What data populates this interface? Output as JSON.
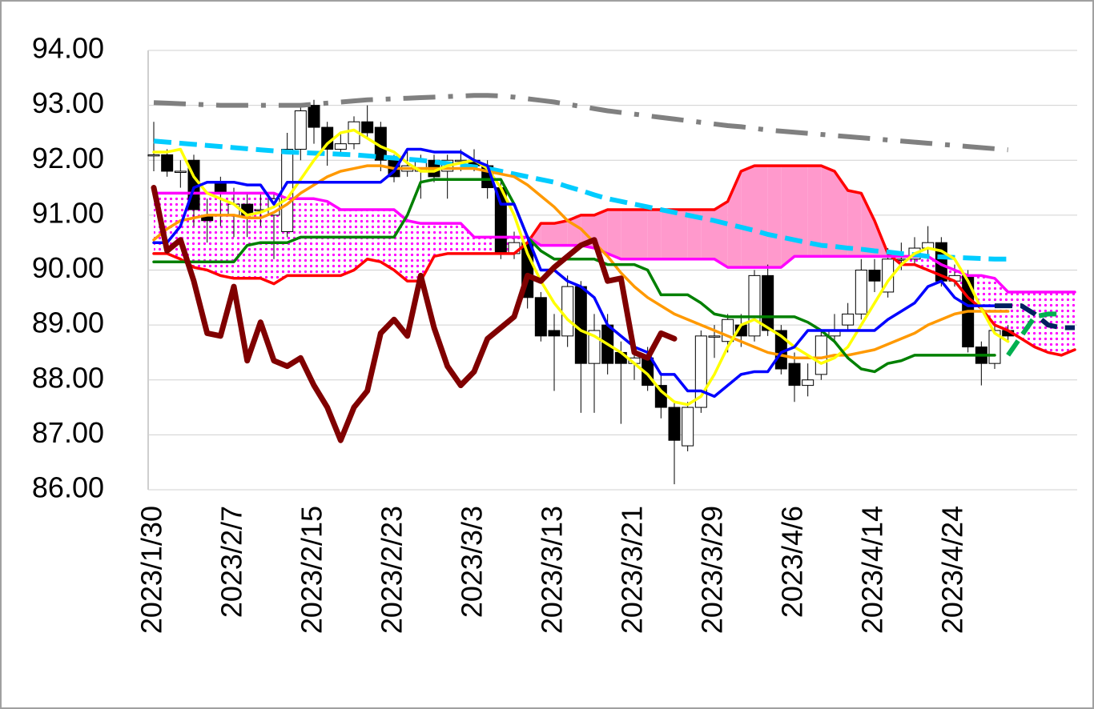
{
  "chart_data": {
    "type": "candlestick",
    "categories": [
      "2023/1/30",
      null,
      null,
      null,
      null,
      null,
      "2023/2/7",
      null,
      null,
      null,
      null,
      null,
      "2023/2/15",
      null,
      null,
      null,
      null,
      null,
      "2023/2/23",
      null,
      null,
      null,
      null,
      null,
      "2023/3/3",
      null,
      null,
      null,
      null,
      null,
      "2023/3/13",
      null,
      null,
      null,
      null,
      null,
      "2023/3/21",
      null,
      null,
      null,
      null,
      null,
      "2023/3/29",
      null,
      null,
      null,
      null,
      null,
      "2023/4/6",
      null,
      null,
      null,
      null,
      null,
      "2023/4/14",
      null,
      null,
      null,
      null,
      null,
      "2023/4/24",
      null,
      null,
      null,
      null,
      null,
      null,
      null,
      null,
      null
    ],
    "ylim": [
      86,
      94
    ],
    "yticks": [
      {
        "value": 86,
        "label": "86.00"
      },
      {
        "value": 87,
        "label": "87.00"
      },
      {
        "value": 88,
        "label": "88.00"
      },
      {
        "value": 89,
        "label": "89.00"
      },
      {
        "value": 90,
        "label": "90.00"
      },
      {
        "value": 91,
        "label": "91.00"
      },
      {
        "value": 92,
        "label": "92.00"
      },
      {
        "value": 93,
        "label": "93.00"
      },
      {
        "value": 94,
        "label": "94.00"
      }
    ],
    "grid": true,
    "candles": {
      "up_color": "#ffffff",
      "down_color": "#000000",
      "edge_color": "#000000",
      "open": [
        92.1,
        92.1,
        91.8,
        92.0,
        91.0,
        91.6,
        91.0,
        91.2,
        91.1,
        91.0,
        90.7,
        92.2,
        93.0,
        92.6,
        92.2,
        92.3,
        92.7,
        92.6,
        92.0,
        91.8,
        91.8,
        92.0,
        91.8,
        92.0,
        92.0,
        91.9,
        91.5,
        90.3,
        90.5,
        89.5,
        88.9,
        88.8,
        89.7,
        88.3,
        89.0,
        88.5,
        88.3,
        88.4,
        87.9,
        87.5,
        86.8,
        87.5,
        88.8,
        88.7,
        89.0,
        88.8,
        89.9,
        88.9,
        88.3,
        87.9,
        88.1,
        88.8,
        89.0,
        89.2,
        90.0,
        89.6,
        90.2,
        90.2,
        90.4,
        90.5,
        89.8,
        89.9,
        88.6,
        88.3,
        88.9,
        null,
        null,
        null,
        null,
        null
      ],
      "high": [
        92.7,
        92.2,
        92.0,
        92.1,
        91.3,
        91.7,
        91.5,
        91.4,
        91.4,
        91.4,
        92.5,
        93.0,
        93.1,
        92.7,
        92.5,
        92.8,
        93.0,
        92.7,
        92.1,
        92.2,
        92.1,
        92.1,
        92.1,
        92.2,
        92.2,
        92.0,
        91.6,
        90.7,
        90.6,
        89.6,
        89.2,
        89.9,
        89.8,
        89.2,
        89.2,
        88.7,
        88.7,
        88.6,
        88.1,
        87.6,
        87.6,
        88.9,
        89.0,
        89.2,
        89.2,
        90.0,
        90.1,
        89.0,
        88.5,
        88.3,
        88.9,
        89.2,
        89.4,
        90.2,
        90.2,
        90.4,
        90.5,
        90.6,
        90.8,
        90.6,
        90.1,
        90.0,
        88.7,
        89.0,
        89.0,
        null,
        null,
        null,
        null,
        null
      ],
      "low": [
        91.8,
        91.7,
        91.5,
        90.8,
        90.5,
        90.8,
        90.6,
        90.6,
        90.8,
        90.2,
        90.6,
        92.0,
        92.3,
        91.9,
        92.1,
        92.2,
        92.4,
        91.8,
        91.6,
        91.7,
        91.3,
        91.6,
        91.3,
        91.8,
        91.8,
        91.3,
        90.2,
        90.2,
        89.3,
        88.7,
        87.8,
        88.6,
        87.4,
        87.4,
        88.1,
        87.2,
        88.0,
        87.8,
        87.3,
        86.1,
        86.7,
        87.4,
        88.4,
        88.5,
        88.6,
        88.7,
        88.8,
        88.1,
        87.6,
        87.7,
        88.0,
        88.7,
        88.9,
        89.1,
        89.6,
        89.5,
        90.0,
        90.1,
        90.2,
        89.7,
        89.7,
        88.5,
        87.9,
        88.2,
        88.7,
        null,
        null,
        null,
        null,
        null
      ],
      "close": [
        92.1,
        91.8,
        91.8,
        91.1,
        90.9,
        91.4,
        91.2,
        91.0,
        91.1,
        91.3,
        92.2,
        92.9,
        92.6,
        92.2,
        92.3,
        92.7,
        92.5,
        92.0,
        91.7,
        91.9,
        92.0,
        91.7,
        92.0,
        92.0,
        91.9,
        91.5,
        90.3,
        90.5,
        89.5,
        88.8,
        88.8,
        89.7,
        88.3,
        88.9,
        88.3,
        88.3,
        88.4,
        87.9,
        87.5,
        86.9,
        87.5,
        88.8,
        88.8,
        89.1,
        88.8,
        89.9,
        88.9,
        88.2,
        87.9,
        88.0,
        88.8,
        88.9,
        89.2,
        90.0,
        89.8,
        90.2,
        90.2,
        90.4,
        90.5,
        89.8,
        89.9,
        88.6,
        88.3,
        88.9,
        88.8,
        null,
        null,
        null,
        null,
        null
      ]
    },
    "cloud": {
      "bull_fill": "#ff99cc",
      "bear_fill": "#ff00ff",
      "span_a": {
        "color": "#ff0000",
        "values": [
          90.3,
          90.3,
          90.2,
          90.05,
          90.0,
          89.9,
          89.85,
          89.85,
          89.85,
          89.75,
          89.9,
          89.9,
          89.9,
          89.9,
          89.9,
          90.0,
          90.2,
          90.15,
          90.0,
          89.8,
          89.8,
          90.25,
          90.3,
          90.3,
          90.3,
          90.3,
          90.3,
          90.3,
          90.5,
          90.85,
          90.85,
          90.9,
          91.0,
          91.0,
          91.1,
          91.1,
          91.1,
          91.1,
          91.1,
          91.1,
          91.1,
          91.1,
          91.1,
          91.25,
          91.8,
          91.9,
          91.9,
          91.9,
          91.9,
          91.9,
          91.9,
          91.8,
          91.45,
          91.4,
          90.9,
          90.3,
          90.1,
          90.1,
          90.0,
          89.9,
          89.8,
          89.5,
          89.3,
          89.0,
          88.9,
          88.75,
          88.6,
          88.5,
          88.45,
          88.55
        ]
      },
      "span_b": {
        "color": "#ff00ff",
        "values": [
          91.4,
          91.4,
          91.4,
          91.4,
          91.4,
          91.4,
          91.4,
          91.4,
          91.4,
          91.4,
          91.3,
          91.3,
          91.3,
          91.25,
          91.1,
          91.1,
          91.1,
          91.1,
          91.1,
          90.9,
          90.85,
          90.85,
          90.85,
          90.85,
          90.6,
          90.6,
          90.6,
          90.6,
          90.6,
          90.45,
          90.45,
          90.45,
          90.45,
          90.4,
          90.3,
          90.2,
          90.2,
          90.2,
          90.2,
          90.2,
          90.2,
          90.2,
          90.2,
          90.05,
          90.05,
          90.05,
          90.05,
          90.05,
          90.25,
          90.25,
          90.25,
          90.25,
          90.25,
          90.25,
          90.25,
          90.25,
          90.25,
          90.25,
          90.25,
          90.1,
          90.0,
          89.9,
          89.9,
          89.85,
          89.6,
          89.6,
          89.6,
          89.6,
          89.6,
          89.6
        ]
      }
    },
    "series": [
      {
        "color": "#808080",
        "dash": "dashdot",
        "weight": "bold",
        "values": [
          93.05,
          93.04,
          93.03,
          93.02,
          93.01,
          93.0,
          93.0,
          93.0,
          93.0,
          93.0,
          93.0,
          93.0,
          93.02,
          93.04,
          93.06,
          93.08,
          93.1,
          93.11,
          93.12,
          93.13,
          93.14,
          93.15,
          93.16,
          93.17,
          93.18,
          93.18,
          93.17,
          93.15,
          93.12,
          93.09,
          93.06,
          93.02,
          92.98,
          92.94,
          92.9,
          92.87,
          92.84,
          92.81,
          92.78,
          92.75,
          92.72,
          92.69,
          92.66,
          92.63,
          92.61,
          92.58,
          92.55,
          92.53,
          92.51,
          92.49,
          92.47,
          92.45,
          92.43,
          92.41,
          92.39,
          92.37,
          92.35,
          92.33,
          92.31,
          92.29,
          92.27,
          92.25,
          92.23,
          92.21,
          92.19,
          null,
          null,
          null,
          null,
          null
        ]
      },
      {
        "color": "#00ccff",
        "dash": "dash",
        "weight": "bold",
        "values": [
          92.35,
          92.33,
          92.31,
          92.29,
          92.27,
          92.25,
          92.23,
          92.21,
          92.19,
          92.17,
          92.15,
          92.14,
          92.13,
          92.12,
          92.11,
          92.1,
          92.08,
          92.06,
          92.04,
          92.02,
          92.0,
          91.97,
          91.94,
          91.91,
          91.88,
          91.85,
          91.8,
          91.75,
          91.7,
          91.65,
          91.6,
          91.52,
          91.45,
          91.37,
          91.3,
          91.25,
          91.2,
          91.15,
          91.1,
          91.05,
          91.0,
          90.95,
          90.9,
          90.84,
          90.78,
          90.72,
          90.65,
          90.6,
          90.55,
          90.5,
          90.45,
          90.43,
          90.4,
          90.38,
          90.35,
          90.33,
          90.3,
          90.28,
          90.25,
          90.24,
          90.23,
          90.22,
          90.21,
          90.2,
          90.2,
          null,
          null,
          null,
          null,
          null
        ]
      },
      {
        "color": "#ff9900",
        "dash": "solid",
        "weight": "normal",
        "values": [
          90.55,
          90.75,
          90.9,
          90.95,
          91.0,
          91.0,
          91.0,
          90.95,
          90.95,
          91.05,
          91.2,
          91.4,
          91.55,
          91.7,
          91.8,
          91.85,
          91.9,
          91.9,
          91.85,
          91.85,
          91.85,
          91.85,
          91.85,
          91.85,
          91.85,
          91.8,
          91.75,
          91.7,
          91.55,
          91.35,
          91.15,
          90.9,
          90.75,
          90.5,
          90.25,
          89.95,
          89.7,
          89.5,
          89.35,
          89.2,
          89.1,
          89.0,
          88.9,
          88.8,
          88.7,
          88.6,
          88.5,
          88.45,
          88.4,
          88.4,
          88.4,
          88.45,
          88.45,
          88.5,
          88.55,
          88.65,
          88.75,
          88.85,
          89.0,
          89.1,
          89.2,
          89.25,
          89.25,
          89.25,
          89.25,
          null,
          null,
          null,
          null,
          null
        ]
      },
      {
        "color": "#ffff00",
        "dash": "solid",
        "weight": "normal",
        "values": [
          92.15,
          92.15,
          92.2,
          91.7,
          91.4,
          91.3,
          91.2,
          91.0,
          91.05,
          91.15,
          91.3,
          91.65,
          92.0,
          92.3,
          92.5,
          92.55,
          92.4,
          92.25,
          92.15,
          91.95,
          91.8,
          91.8,
          91.9,
          91.95,
          92.0,
          91.85,
          91.5,
          91.0,
          90.3,
          89.8,
          89.4,
          89.1,
          88.9,
          88.8,
          88.65,
          88.5,
          88.3,
          88.1,
          87.8,
          87.6,
          87.55,
          87.7,
          88.1,
          88.6,
          89.0,
          89.1,
          88.95,
          88.8,
          88.6,
          88.45,
          88.3,
          88.4,
          88.6,
          89.0,
          89.4,
          89.8,
          90.1,
          90.3,
          90.4,
          90.35,
          90.2,
          89.8,
          89.3,
          88.85,
          88.7,
          null,
          null,
          null,
          null,
          null
        ]
      },
      {
        "color": "#008000",
        "dash": "solid",
        "weight": "normal",
        "values": [
          90.15,
          90.15,
          90.15,
          90.15,
          90.15,
          90.15,
          90.15,
          90.45,
          90.5,
          90.5,
          90.5,
          90.6,
          90.6,
          90.6,
          90.6,
          90.6,
          90.6,
          90.6,
          90.6,
          91.0,
          91.6,
          91.65,
          91.65,
          91.65,
          91.65,
          91.65,
          91.65,
          91.2,
          90.6,
          90.35,
          90.2,
          90.2,
          90.2,
          90.2,
          90.1,
          90.1,
          90.1,
          90.0,
          89.55,
          89.55,
          89.55,
          89.4,
          89.2,
          89.15,
          89.15,
          89.15,
          89.15,
          89.15,
          89.15,
          89.05,
          88.9,
          88.7,
          88.4,
          88.2,
          88.15,
          88.3,
          88.35,
          88.45,
          88.45,
          88.45,
          88.45,
          88.45,
          88.45,
          88.45,
          null,
          null,
          null,
          null,
          null,
          null
        ]
      },
      {
        "color": "#00b050",
        "dash": "dash",
        "weight": "bold",
        "values": [
          null,
          null,
          null,
          null,
          null,
          null,
          null,
          null,
          null,
          null,
          null,
          null,
          null,
          null,
          null,
          null,
          null,
          null,
          null,
          null,
          null,
          null,
          null,
          null,
          null,
          null,
          null,
          null,
          null,
          null,
          null,
          null,
          null,
          null,
          null,
          null,
          null,
          null,
          null,
          null,
          null,
          null,
          null,
          null,
          null,
          null,
          null,
          null,
          null,
          null,
          null,
          null,
          null,
          null,
          null,
          null,
          null,
          null,
          null,
          null,
          null,
          null,
          null,
          null,
          88.45,
          88.8,
          89.15,
          89.2,
          89.2,
          null
        ]
      },
      {
        "color": "#0000ff",
        "dash": "solid",
        "weight": "normal",
        "values": [
          90.5,
          90.5,
          90.8,
          91.5,
          91.6,
          91.6,
          91.6,
          91.55,
          91.55,
          91.2,
          91.6,
          91.6,
          91.6,
          91.6,
          91.6,
          91.6,
          91.6,
          91.6,
          91.8,
          92.2,
          92.2,
          92.15,
          92.15,
          92.15,
          92.0,
          91.9,
          91.2,
          91.2,
          90.6,
          90.0,
          90.0,
          89.8,
          89.7,
          89.5,
          89.0,
          88.8,
          88.6,
          88.5,
          88.1,
          88.1,
          87.8,
          87.8,
          87.7,
          87.9,
          88.1,
          88.15,
          88.15,
          88.5,
          88.6,
          88.9,
          88.9,
          88.9,
          88.9,
          88.9,
          88.9,
          89.1,
          89.25,
          89.4,
          89.7,
          89.8,
          89.5,
          89.35,
          89.35,
          89.35,
          null,
          null,
          null,
          null,
          null,
          null
        ]
      },
      {
        "color": "#002060",
        "dash": "dash",
        "weight": "bold",
        "values": [
          null,
          null,
          null,
          null,
          null,
          null,
          null,
          null,
          null,
          null,
          null,
          null,
          null,
          null,
          null,
          null,
          null,
          null,
          null,
          null,
          null,
          null,
          null,
          null,
          null,
          null,
          null,
          null,
          null,
          null,
          null,
          null,
          null,
          null,
          null,
          null,
          null,
          null,
          null,
          null,
          null,
          null,
          null,
          null,
          null,
          null,
          null,
          null,
          null,
          null,
          null,
          null,
          null,
          null,
          null,
          null,
          null,
          null,
          null,
          null,
          null,
          null,
          null,
          89.35,
          89.35,
          89.35,
          89.2,
          89.0,
          88.95,
          88.95
        ]
      },
      {
        "color": "#800000",
        "dash": "solid",
        "weight": "heavy",
        "values": [
          91.5,
          90.35,
          90.55,
          89.8,
          88.85,
          88.8,
          89.7,
          88.35,
          89.05,
          88.35,
          88.25,
          88.4,
          87.9,
          87.5,
          86.9,
          87.5,
          87.8,
          88.85,
          89.1,
          88.8,
          89.9,
          88.95,
          88.25,
          87.9,
          88.15,
          88.75,
          88.95,
          89.15,
          89.9,
          89.8,
          90.05,
          90.25,
          90.45,
          90.55,
          89.8,
          89.85,
          88.5,
          88.4,
          88.85,
          88.75,
          null,
          null,
          null,
          null,
          null,
          null,
          null,
          null,
          null,
          null,
          null,
          null,
          null,
          null,
          null,
          null,
          null,
          null,
          null,
          null,
          null,
          null,
          null,
          null,
          null,
          null,
          null,
          null,
          null,
          null
        ]
      }
    ]
  }
}
